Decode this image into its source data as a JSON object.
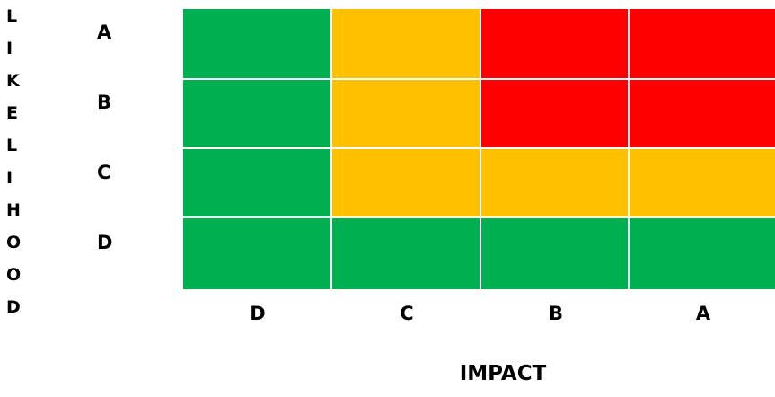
{
  "y_axis": {
    "title_letters": [
      "L",
      "I",
      "K",
      "E",
      "L",
      "I",
      "H",
      "O",
      "O",
      "D"
    ]
  },
  "x_axis": {
    "title": "IMPACT"
  },
  "rows": [
    "A",
    "B",
    "C",
    "D"
  ],
  "columns": [
    "D",
    "C",
    "B",
    "A"
  ],
  "colors": {
    "green": "#00b050",
    "amber": "#ffc000",
    "red": "#ff0000"
  },
  "matrix": [
    [
      "green",
      "amber",
      "red",
      "red"
    ],
    [
      "green",
      "amber",
      "red",
      "red"
    ],
    [
      "green",
      "amber",
      "amber",
      "amber"
    ],
    [
      "green",
      "green",
      "green",
      "green"
    ]
  ]
}
